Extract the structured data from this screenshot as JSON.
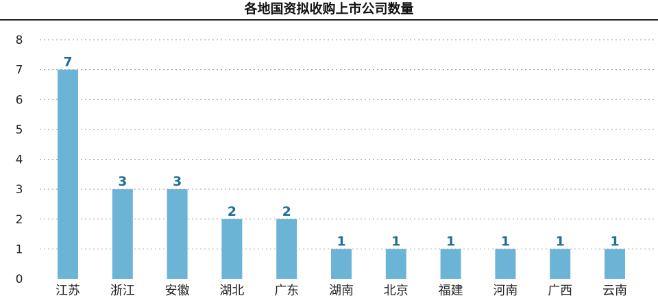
{
  "chart_data": {
    "type": "bar",
    "title": "各地国资拟收购上市公司数量",
    "xlabel": "",
    "ylabel": "",
    "categories": [
      "江苏",
      "浙江",
      "安徽",
      "湖北",
      "广东",
      "湖南",
      "北京",
      "福建",
      "河南",
      "广西",
      "云南"
    ],
    "values": [
      7,
      3,
      3,
      2,
      2,
      1,
      1,
      1,
      1,
      1,
      1
    ],
    "ylim": [
      0,
      8
    ],
    "yticks": [
      0,
      1,
      2,
      3,
      4,
      5,
      6,
      7,
      8
    ],
    "grid": true,
    "data_labels": true,
    "legend": "none",
    "bar_color": "#6cb4d6",
    "label_color": "#1f6f95"
  }
}
